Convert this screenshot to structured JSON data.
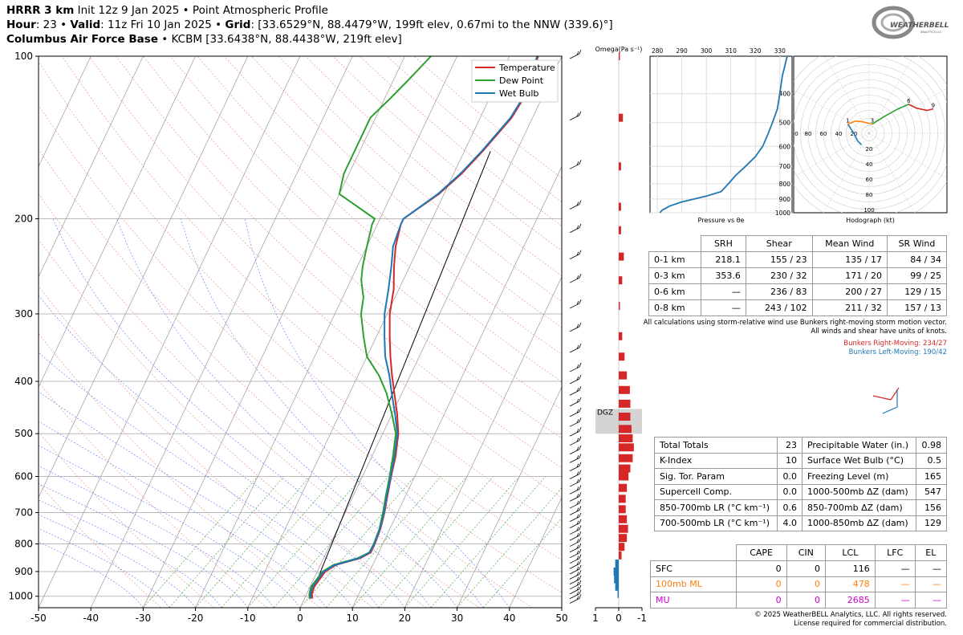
{
  "header": {
    "l1_model": "HRRR 3 km",
    "l1_rest": " Init 12z 9 Jan 2025 • Point Atmospheric Profile",
    "l2_hour_lbl": "Hour",
    "l2_hour": ": 23 • ",
    "l2_valid_lbl": "Valid",
    "l2_valid": ": 11z Fri 10 Jan 2025 • ",
    "l2_grid_lbl": "Grid",
    "l2_grid": ": [33.6529°N, 88.4479°W, 199ft elev, 0.67mi to the NNW (339.6)°]",
    "l3_site": "Columbus Air Force Base",
    "l3_rest": " • KCBM [33.6438°N, 88.4438°W, 219ft elev]"
  },
  "logo": {
    "text1": "WEATHERBELL",
    "text2": "ANALYTICS LLC"
  },
  "colors": {
    "temperature": "#d62728",
    "dewpoint": "#2ca02c",
    "wetbulb": "#1f77b4",
    "omega": "#d62728",
    "omega_neg": "#1f77b4",
    "mu": "#cc00cc",
    "ml": "#ff7f0e"
  },
  "chart_data": [
    {
      "type": "line",
      "title": "Skew-T",
      "x_ticks": [
        "-50",
        "-40",
        "-30",
        "-20",
        "-10",
        "0",
        "10",
        "20",
        "30",
        "40",
        "50"
      ],
      "y_ticks": [
        "100",
        "200",
        "300",
        "400",
        "500",
        "600",
        "700",
        "800",
        "900",
        "1000"
      ],
      "xlim": [
        -50,
        50
      ],
      "ylim": [
        1050,
        100
      ],
      "y_scale": "log",
      "legend": [
        "Temperature",
        "Dew Point",
        "Wet Bulb"
      ],
      "legend_position": "top-right",
      "series": [
        {
          "name": "Temperature",
          "points": [
            [
              1.5,
              1010
            ],
            [
              1.0,
              990
            ],
            [
              0.8,
              960
            ],
            [
              1.5,
              900
            ],
            [
              3,
              875
            ],
            [
              7,
              850
            ],
            [
              8.5,
              830
            ],
            [
              8.5,
              800
            ],
            [
              8.2,
              750
            ],
            [
              7.5,
              700
            ],
            [
              6.5,
              650
            ],
            [
              5.5,
              600
            ],
            [
              4.5,
              550
            ],
            [
              3,
              500
            ],
            [
              1,
              460
            ],
            [
              -1.5,
              420
            ],
            [
              -3.5,
              390
            ],
            [
              -5.5,
              360
            ],
            [
              -7.5,
              330
            ],
            [
              -9.5,
              300
            ],
            [
              -11,
              270
            ],
            [
              -13,
              245
            ],
            [
              -14.5,
              225
            ],
            [
              -15.5,
              205
            ],
            [
              -15.5,
              200
            ],
            [
              -11,
              180
            ],
            [
              -8.5,
              165
            ],
            [
              -6.5,
              150
            ],
            [
              -4,
              130
            ],
            [
              -3.5,
              120
            ],
            [
              -4,
              110
            ],
            [
              -4.5,
              100
            ]
          ]
        },
        {
          "name": "Dew Point",
          "points": [
            [
              1.0,
              1010
            ],
            [
              0.5,
              990
            ],
            [
              0.2,
              960
            ],
            [
              1.0,
              900
            ],
            [
              2.5,
              875
            ],
            [
              6.5,
              850
            ],
            [
              8.2,
              830
            ],
            [
              8.3,
              800
            ],
            [
              8.0,
              750
            ],
            [
              7.2,
              700
            ],
            [
              6.2,
              650
            ],
            [
              5.2,
              600
            ],
            [
              4,
              550
            ],
            [
              2.5,
              500
            ],
            [
              0,
              460
            ],
            [
              -3,
              420
            ],
            [
              -6,
              390
            ],
            [
              -10,
              360
            ],
            [
              -12.5,
              330
            ],
            [
              -15,
              300
            ],
            [
              -16,
              280
            ],
            [
              -18,
              260
            ],
            [
              -19,
              245
            ],
            [
              -20,
              225
            ],
            [
              -21,
              205
            ],
            [
              -21,
              200
            ],
            [
              -30,
              180
            ],
            [
              -31,
              165
            ],
            [
              -31,
              150
            ],
            [
              -31,
              130
            ],
            [
              -29,
              120
            ],
            [
              -27,
              110
            ],
            [
              -25,
              100
            ]
          ]
        },
        {
          "name": "Wet Bulb",
          "points": [
            [
              1.2,
              1010
            ],
            [
              0.7,
              990
            ],
            [
              0.5,
              960
            ],
            [
              1.2,
              900
            ],
            [
              2.8,
              875
            ],
            [
              6.8,
              850
            ],
            [
              8.3,
              830
            ],
            [
              8.4,
              800
            ],
            [
              8.1,
              750
            ],
            [
              7.4,
              700
            ],
            [
              6.4,
              650
            ],
            [
              5.4,
              600
            ],
            [
              4.3,
              550
            ],
            [
              2.8,
              500
            ],
            [
              0.6,
              460
            ],
            [
              -2,
              420
            ],
            [
              -4,
              390
            ],
            [
              -6.5,
              360
            ],
            [
              -8.5,
              330
            ],
            [
              -10.5,
              300
            ],
            [
              -12,
              270
            ],
            [
              -13.5,
              245
            ],
            [
              -15,
              225
            ],
            [
              -15.5,
              205
            ],
            [
              -15.5,
              200
            ],
            [
              -11.2,
              180
            ],
            [
              -8.7,
              165
            ],
            [
              -6.7,
              150
            ],
            [
              -4.2,
              130
            ],
            [
              -3.7,
              120
            ],
            [
              -4.2,
              110
            ],
            [
              -4.7,
              100
            ]
          ]
        }
      ]
    },
    {
      "type": "bar",
      "title": "Omega",
      "xlabel": "Omega(Pa s⁻¹)",
      "x_ticks": [
        "1",
        "0",
        "-1"
      ],
      "xlim": [
        1,
        -1
      ],
      "highlight_label": "DGZ",
      "highlight_range": [
        450,
        500
      ],
      "values": [
        [
          100,
          -0.05
        ],
        [
          130,
          -0.18
        ],
        [
          160,
          -0.1
        ],
        [
          190,
          -0.1
        ],
        [
          210,
          -0.1
        ],
        [
          235,
          -0.22
        ],
        [
          260,
          -0.15
        ],
        [
          290,
          -0.05
        ],
        [
          330,
          -0.15
        ],
        [
          360,
          -0.25
        ],
        [
          390,
          -0.35
        ],
        [
          415,
          -0.48
        ],
        [
          440,
          -0.5
        ],
        [
          465,
          -0.5
        ],
        [
          490,
          -0.55
        ],
        [
          510,
          -0.6
        ],
        [
          530,
          -0.65
        ],
        [
          555,
          -0.6
        ],
        [
          580,
          -0.5
        ],
        [
          600,
          -0.42
        ],
        [
          630,
          -0.35
        ],
        [
          660,
          -0.3
        ],
        [
          690,
          -0.3
        ],
        [
          720,
          -0.35
        ],
        [
          750,
          -0.4
        ],
        [
          780,
          -0.35
        ],
        [
          810,
          -0.25
        ],
        [
          840,
          -0.12
        ],
        [
          870,
          0.15
        ],
        [
          900,
          0.22
        ],
        [
          930,
          0.2
        ],
        [
          960,
          0.15
        ],
        [
          990,
          0.05
        ]
      ]
    },
    {
      "type": "line",
      "title": "Pressure vs θe",
      "xlabel": "Pressure vs θe",
      "x_ticks": [
        "280",
        "290",
        "300",
        "310",
        "320",
        "330"
      ],
      "y_ticks": [
        "400",
        "500",
        "600",
        "700",
        "800",
        "900",
        "1000"
      ],
      "xlim": [
        277,
        335
      ],
      "ylim": [
        1000,
        300
      ],
      "series": [
        {
          "name": "θe",
          "points": [
            [
              281,
              1000
            ],
            [
              282,
              980
            ],
            [
              285,
              950
            ],
            [
              290,
              920
            ],
            [
              300,
              880
            ],
            [
              306,
              850
            ],
            [
              309,
              800
            ],
            [
              312,
              750
            ],
            [
              316,
              700
            ],
            [
              320,
              650
            ],
            [
              323,
              600
            ],
            [
              325,
              550
            ],
            [
              327,
              500
            ],
            [
              329,
              450
            ],
            [
              330,
              400
            ],
            [
              331,
              350
            ],
            [
              333,
              300
            ]
          ]
        }
      ]
    },
    {
      "type": "line",
      "title": "Hodograph",
      "xlabel": "Hodograph (kt)",
      "ring_labels": [
        "20",
        "40",
        "60",
        "80",
        "100"
      ],
      "left_labels": [
        "100",
        "80",
        "60",
        "40",
        "20"
      ],
      "series": [
        {
          "name": "0-1 km",
          "points": [
            [
              -10,
              -15
            ],
            [
              -15,
              -10
            ],
            [
              -20,
              0
            ],
            [
              -28,
              12
            ]
          ]
        },
        {
          "name": "1-3 km",
          "points": [
            [
              -28,
              12
            ],
            [
              -18,
              16
            ],
            [
              -8,
              15
            ],
            [
              4,
              12
            ]
          ]
        },
        {
          "name": "3-6 km",
          "points": [
            [
              4,
              12
            ],
            [
              20,
              22
            ],
            [
              38,
              32
            ],
            [
              52,
              38
            ]
          ]
        },
        {
          "name": "6-9 km",
          "points": [
            [
              52,
              38
            ],
            [
              62,
              33
            ],
            [
              76,
              30
            ],
            [
              84,
              32
            ]
          ]
        }
      ],
      "height_labels": [
        "1",
        "3",
        "6",
        "9"
      ]
    }
  ],
  "srh_table": {
    "headers": [
      "",
      "SRH",
      "Shear",
      "Mean Wind",
      "SR Wind"
    ],
    "rows": [
      [
        "0-1 km",
        "218.1",
        "155 / 23",
        "135 / 17",
        "84 / 34"
      ],
      [
        "0-3 km",
        "353.6",
        "230 / 32",
        "171 / 20",
        "99 / 25"
      ],
      [
        "0-6 km",
        "—",
        "236 / 83",
        "200 / 27",
        "129 / 15"
      ],
      [
        "0-8 km",
        "—",
        "243 / 102",
        "211 / 32",
        "157 / 13"
      ]
    ],
    "note1": "All calculations using storm-relative wind use Bunkers right-moving storm motion vector.",
    "note2": "All winds and shear have units of knots.",
    "bunkers_right": "Bunkers Right-Moving: 234/27",
    "bunkers_left": "Bunkers Left-Moving: 190/42"
  },
  "indices_table": {
    "rows": [
      [
        "Total Totals",
        "23",
        "Precipitable Water (in.)",
        "0.98"
      ],
      [
        "K-Index",
        "10",
        "Surface Wet Bulb (°C)",
        "0.5"
      ],
      [
        "Sig. Tor. Param",
        "0.0",
        "Freezing Level (m)",
        "165"
      ],
      [
        "Supercell Comp.",
        "0.0",
        "1000-500mb ΔZ (dam)",
        "547"
      ],
      [
        "850-700mb LR (°C km⁻¹)",
        "0.6",
        "850-700mb ΔZ (dam)",
        "156"
      ],
      [
        "700-500mb LR (°C km⁻¹)",
        "4.0",
        "1000-850mb ΔZ (dam)",
        "129"
      ]
    ]
  },
  "parcel_table": {
    "headers": [
      "",
      "CAPE",
      "CIN",
      "LCL",
      "LFC",
      "EL"
    ],
    "rows": [
      [
        "SFC",
        "0",
        "0",
        "116",
        "—",
        "—"
      ],
      [
        "100mb ML",
        "0",
        "0",
        "478",
        "—",
        "—"
      ],
      [
        "MU",
        "0",
        "0",
        "2685",
        "—",
        "—"
      ]
    ]
  },
  "copyright": {
    "line1": "© 2025 WeatherBELL Analytics, LLC. All rights reserved.",
    "line2": "License required for commercial distribution."
  }
}
